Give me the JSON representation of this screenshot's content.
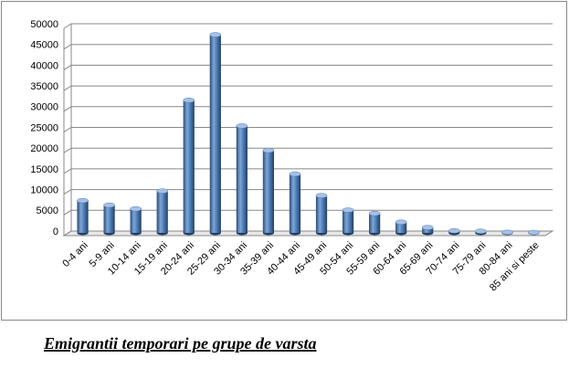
{
  "chart_data": {
    "type": "bar",
    "title": "Emigrantii temporari pe grupe de varsta",
    "categories": [
      "0-4 ani",
      "5-9 ani",
      "10-14 ani",
      "15-19 ani",
      "20-24 ani",
      "25-29 ani",
      "30-34 ani",
      "35-39 ani",
      "40-44 ani",
      "45-49 ani",
      "50-54 ani",
      "55-59 ani",
      "60-64 ani",
      "65-69 ani",
      "70-74 ani",
      "75-79 ani",
      "80-84 ani",
      "85 ani si peste"
    ],
    "values": [
      7800,
      6700,
      5800,
      10100,
      32000,
      47800,
      25800,
      19900,
      14200,
      9000,
      5500,
      4700,
      2600,
      1300,
      500,
      400,
      150,
      100
    ],
    "color": "#4f81bd",
    "ylim": [
      0,
      50000
    ],
    "yticks": [
      0,
      5000,
      10000,
      15000,
      20000,
      25000,
      30000,
      35000,
      40000,
      45000,
      50000
    ],
    "grid": true
  }
}
